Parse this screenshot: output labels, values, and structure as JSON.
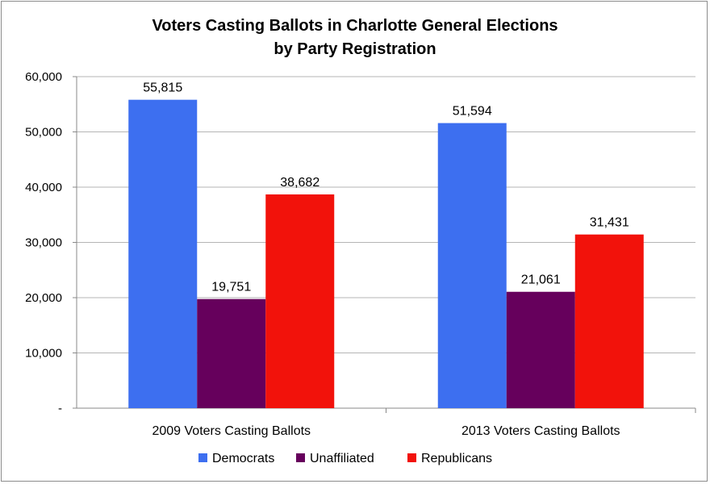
{
  "chart_data": {
    "type": "bar",
    "title_lines": [
      "Voters Casting Ballots in Charlotte General Elections",
      "by Party Registration"
    ],
    "categories": [
      "2009 Voters Casting Ballots",
      "2013 Voters Casting Ballots"
    ],
    "series": [
      {
        "name": "Democrats",
        "values": [
          55815,
          51594
        ],
        "labels": [
          "55,815",
          "51,594"
        ],
        "color": "#3d6ff0"
      },
      {
        "name": "Unaffiliated",
        "values": [
          19751,
          21061
        ],
        "labels": [
          "19,751",
          "21,061"
        ],
        "color": "#66005c"
      },
      {
        "name": "Republicans",
        "values": [
          38682,
          31431
        ],
        "labels": [
          "38,682",
          "31,431"
        ],
        "color": "#f2120b"
      }
    ],
    "y_ticks": [
      {
        "value": 0,
        "label": "-"
      },
      {
        "value": 10000,
        "label": "10,000"
      },
      {
        "value": 20000,
        "label": "20,000"
      },
      {
        "value": 30000,
        "label": "30,000"
      },
      {
        "value": 40000,
        "label": "40,000"
      },
      {
        "value": 50000,
        "label": "50,000"
      },
      {
        "value": 60000,
        "label": "60,000"
      }
    ],
    "ylim": [
      0,
      60000
    ],
    "grid": true,
    "legend_position": "bottom"
  }
}
